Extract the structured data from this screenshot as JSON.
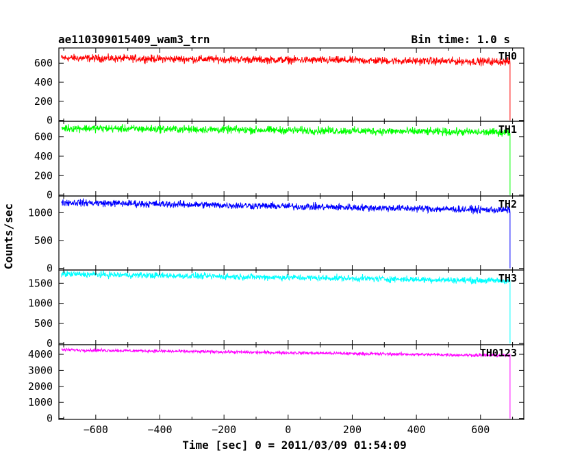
{
  "chart_data": {
    "type": "line",
    "title_left": "ae110309015409_wam3_trn",
    "title_right": "Bin time: 1.0 s",
    "xlabel": "Time [sec] 0 = 2011/03/09 01:54:09",
    "ylabel": "Counts/sec",
    "xlim": [
      -715,
      735
    ],
    "x_ticks": [
      -600,
      -400,
      -200,
      0,
      200,
      400,
      600
    ],
    "data_x_range": [
      -707,
      692
    ],
    "drop_x": 692,
    "panels": [
      {
        "name": "TH0",
        "color": "#ff0000",
        "ylim": [
          -10,
          760
        ],
        "y_ticks": [
          0,
          200,
          400,
          600
        ],
        "start": 655,
        "end": 615,
        "noise": 28
      },
      {
        "name": "TH1",
        "color": "#00ff00",
        "ylim": [
          -10,
          760
        ],
        "y_ticks": [
          0,
          200,
          400,
          600
        ],
        "start": 690,
        "end": 645,
        "noise": 28
      },
      {
        "name": "TH2",
        "color": "#0000ff",
        "ylim": [
          -30,
          1300
        ],
        "y_ticks": [
          0,
          500,
          1000
        ],
        "start": 1185,
        "end": 1045,
        "noise": 45
      },
      {
        "name": "TH3",
        "color": "#00ffff",
        "ylim": [
          -30,
          1830
        ],
        "y_ticks": [
          0,
          500,
          1000,
          1500
        ],
        "start": 1730,
        "end": 1560,
        "noise": 55
      },
      {
        "name": "TH0123",
        "color": "#ff00ff",
        "ylim": [
          -60,
          4600
        ],
        "y_ticks": [
          0,
          1000,
          2000,
          3000,
          4000
        ],
        "start": 4280,
        "end": 3920,
        "noise": 70
      }
    ]
  }
}
